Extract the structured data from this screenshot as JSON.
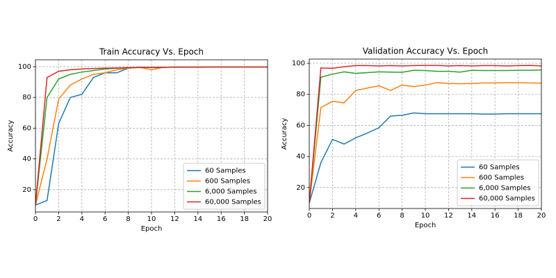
{
  "chart_data": [
    {
      "type": "line",
      "title": "Train Accuracy Vs. Epoch",
      "x_label": "Epoch",
      "y_label": "Accuracy",
      "x": [
        0,
        1,
        2,
        3,
        4,
        5,
        6,
        7,
        8,
        9,
        10,
        11,
        12,
        13,
        14,
        15,
        16,
        17,
        18,
        19,
        20
      ],
      "series": [
        {
          "name": "60 Samples",
          "color": "#1f77b4",
          "values": [
            10,
            13,
            63,
            80,
            82,
            93,
            96,
            96,
            99,
            99.5,
            99.5,
            99.5,
            99.8,
            99.8,
            99.8,
            99.8,
            99.8,
            99.8,
            99.8,
            99.8,
            99.8
          ]
        },
        {
          "name": "600 Samples",
          "color": "#ff7f0e",
          "values": [
            10,
            40,
            79,
            88,
            92,
            95,
            96,
            98,
            99,
            99.5,
            98,
            99.5,
            99.7,
            99.8,
            99.8,
            99.8,
            99.8,
            99.8,
            99.8,
            99.8,
            99.8
          ]
        },
        {
          "name": "6,000 Samples",
          "color": "#2ca02c",
          "values": [
            10,
            80,
            92,
            95,
            96.5,
            97.5,
            98.5,
            99,
            99.3,
            99.5,
            99.5,
            99.6,
            99.7,
            99.7,
            99.7,
            99.8,
            99.8,
            99.8,
            99.8,
            99.8,
            99.8
          ]
        },
        {
          "name": "60,000 Samples",
          "color": "#d62728",
          "values": [
            10,
            93,
            97,
            98,
            98.5,
            98.8,
            99,
            99.2,
            99.4,
            99.5,
            99.6,
            99.6,
            99.7,
            99.7,
            99.7,
            99.8,
            99.8,
            99.8,
            99.8,
            99.8,
            99.8
          ]
        }
      ],
      "xlim": [
        0,
        20
      ],
      "xticks": [
        0,
        2,
        4,
        6,
        8,
        10,
        12,
        14,
        16,
        18,
        20
      ],
      "ylim": [
        5.5,
        104.5
      ],
      "yticks": [
        20,
        40,
        60,
        80,
        100
      ],
      "grid": true,
      "legend": "lower right"
    },
    {
      "type": "line",
      "title": "Validation Accuracy Vs. Epoch",
      "x_label": "Epoch",
      "y_label": "Accuracy",
      "x": [
        0,
        1,
        2,
        3,
        4,
        5,
        6,
        7,
        8,
        9,
        10,
        11,
        12,
        13,
        14,
        15,
        16,
        17,
        18,
        19,
        20
      ],
      "series": [
        {
          "name": "60 Samples",
          "color": "#1f77b4",
          "values": [
            10,
            36,
            51,
            48,
            52,
            55,
            58.5,
            66,
            66.5,
            68,
            67.5,
            67.5,
            67.5,
            67.5,
            67.5,
            67.3,
            67.3,
            67.5,
            67.5,
            67.5,
            67.5
          ]
        },
        {
          "name": "600 Samples",
          "color": "#ff7f0e",
          "values": [
            10,
            71.5,
            75.5,
            74.5,
            82.5,
            84,
            85.5,
            82.5,
            86,
            85,
            86,
            87.5,
            87,
            86.8,
            87,
            87.3,
            87.3,
            87.5,
            87.5,
            87.3,
            87.2
          ]
        },
        {
          "name": "6,000 Samples",
          "color": "#2ca02c",
          "values": [
            10,
            91,
            93,
            94.5,
            93.5,
            94,
            94.5,
            94.3,
            94.2,
            95.5,
            95.3,
            94.8,
            94.8,
            94.3,
            95.5,
            95.3,
            95.3,
            95.3,
            95.5,
            95.5,
            95.7
          ]
        },
        {
          "name": "60,000 Samples",
          "color": "#d62728",
          "values": [
            10,
            97,
            96.8,
            97.8,
            98.5,
            98.5,
            98.3,
            98.5,
            98.3,
            98.5,
            98.6,
            98.6,
            98.3,
            98.5,
            98.3,
            98.5,
            98.5,
            98.3,
            98.5,
            98.6,
            98.3
          ]
        }
      ],
      "xlim": [
        0,
        20
      ],
      "xticks": [
        0,
        2,
        4,
        6,
        8,
        10,
        12,
        14,
        16,
        18,
        20
      ],
      "ylim": [
        6.5,
        102.7
      ],
      "yticks": [
        20,
        40,
        60,
        80,
        100
      ],
      "grid": true,
      "legend": "lower right"
    }
  ]
}
